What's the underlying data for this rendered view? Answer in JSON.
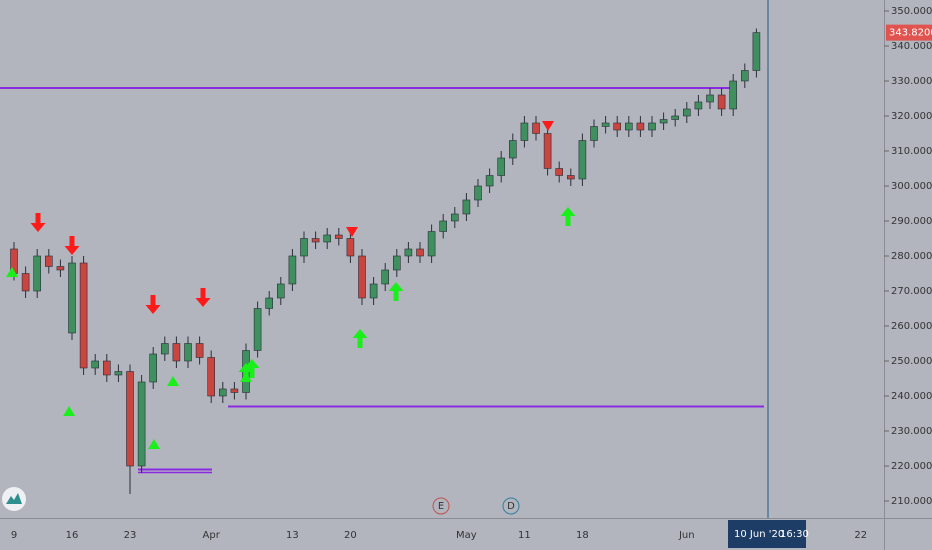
{
  "chart_data": {
    "type": "candlestick",
    "categories": [
      "9",
      null,
      null,
      null,
      null,
      "16",
      null,
      null,
      null,
      null,
      "23",
      null,
      null,
      null,
      null,
      null,
      null,
      "Apr",
      null,
      null,
      null,
      null,
      null,
      null,
      "13",
      null,
      null,
      null,
      null,
      "20",
      null,
      null,
      null,
      null,
      null,
      null,
      null,
      null,
      null,
      "May",
      null,
      null,
      null,
      null,
      "11",
      null,
      null,
      null,
      null,
      "18",
      null,
      null,
      null,
      null,
      null,
      null,
      null,
      null,
      "Jun",
      null,
      null,
      null,
      null,
      null,
      null
    ],
    "future_ticks": [
      "22"
    ],
    "open": [
      282,
      275,
      270,
      280,
      277,
      258,
      278,
      248,
      250,
      246,
      247,
      220,
      244,
      252,
      255,
      250,
      255,
      251,
      240,
      242,
      241,
      253,
      265,
      268,
      272,
      280,
      285,
      284,
      286,
      285,
      280,
      268,
      272,
      276,
      280,
      282,
      280,
      287,
      290,
      292,
      296,
      300,
      303,
      308,
      313,
      318,
      315,
      305,
      303,
      302,
      313,
      317,
      318,
      316,
      318,
      316,
      318,
      319,
      320,
      322,
      324,
      326,
      322,
      330,
      333
    ],
    "high": [
      284,
      277,
      282,
      282,
      279,
      280,
      280,
      252,
      252,
      249,
      249,
      246,
      254,
      257,
      257,
      257,
      257,
      253,
      244,
      244,
      255,
      267,
      270,
      274,
      282,
      287,
      287,
      288,
      288,
      287,
      282,
      274,
      278,
      282,
      284,
      284,
      289,
      292,
      294,
      298,
      302,
      305,
      310,
      315,
      320,
      320,
      317,
      307,
      305,
      315,
      319,
      320,
      320,
      320,
      320,
      320,
      321,
      322,
      324,
      326,
      328,
      328,
      332,
      335,
      345
    ],
    "low": [
      273,
      268,
      268,
      275,
      274,
      256,
      246,
      246,
      244,
      244,
      212,
      218,
      242,
      250,
      248,
      248,
      249,
      238,
      238,
      239,
      239,
      251,
      263,
      266,
      270,
      278,
      282,
      282,
      283,
      278,
      266,
      266,
      270,
      274,
      278,
      278,
      278,
      285,
      288,
      290,
      294,
      298,
      301,
      306,
      311,
      313,
      303,
      301,
      300,
      300,
      311,
      315,
      314,
      314,
      314,
      314,
      316,
      317,
      318,
      320,
      322,
      320,
      320,
      328,
      331
    ],
    "close": [
      275,
      270,
      280,
      277,
      276,
      278,
      248,
      250,
      246,
      247,
      220,
      244,
      252,
      255,
      250,
      255,
      251,
      240,
      242,
      241,
      253,
      265,
      268,
      272,
      280,
      285,
      284,
      286,
      285,
      280,
      268,
      272,
      276,
      280,
      282,
      280,
      287,
      290,
      292,
      296,
      300,
      303,
      308,
      313,
      318,
      315,
      305,
      303,
      302,
      313,
      317,
      318,
      316,
      318,
      316,
      318,
      319,
      320,
      322,
      324,
      326,
      322,
      330,
      333,
      343.82
    ],
    "up_color": "#3f8f5f",
    "down_color": "#c8463f",
    "ylim": [
      205.14,
      353.14
    ],
    "yticks": [
      {
        "value": 210,
        "label": "210.0000"
      },
      {
        "value": 220,
        "label": "220.0000"
      },
      {
        "value": 230,
        "label": "230.0000"
      },
      {
        "value": 240,
        "label": "240.0000"
      },
      {
        "value": 250,
        "label": "250.0000"
      },
      {
        "value": 260,
        "label": "260.0000"
      },
      {
        "value": 270,
        "label": "270.0000"
      },
      {
        "value": 280,
        "label": "280.0000"
      },
      {
        "value": 290,
        "label": "290.0000"
      },
      {
        "value": 300,
        "label": "300.0000"
      },
      {
        "value": 310,
        "label": "310.0000"
      },
      {
        "value": 320,
        "label": "320.0000"
      },
      {
        "value": 330,
        "label": "330.0000"
      },
      {
        "value": 340,
        "label": "340.0000"
      },
      {
        "value": 350,
        "label": "350.0000"
      }
    ],
    "last_price": {
      "value": 343.82,
      "label": "343.8200"
    },
    "levels": [
      328,
      237,
      219
    ],
    "level_color": "#8a2be2",
    "events": [
      "E",
      "D"
    ],
    "cursor": {
      "date_label": "10 Jun '20",
      "time_label": "16:30"
    }
  }
}
